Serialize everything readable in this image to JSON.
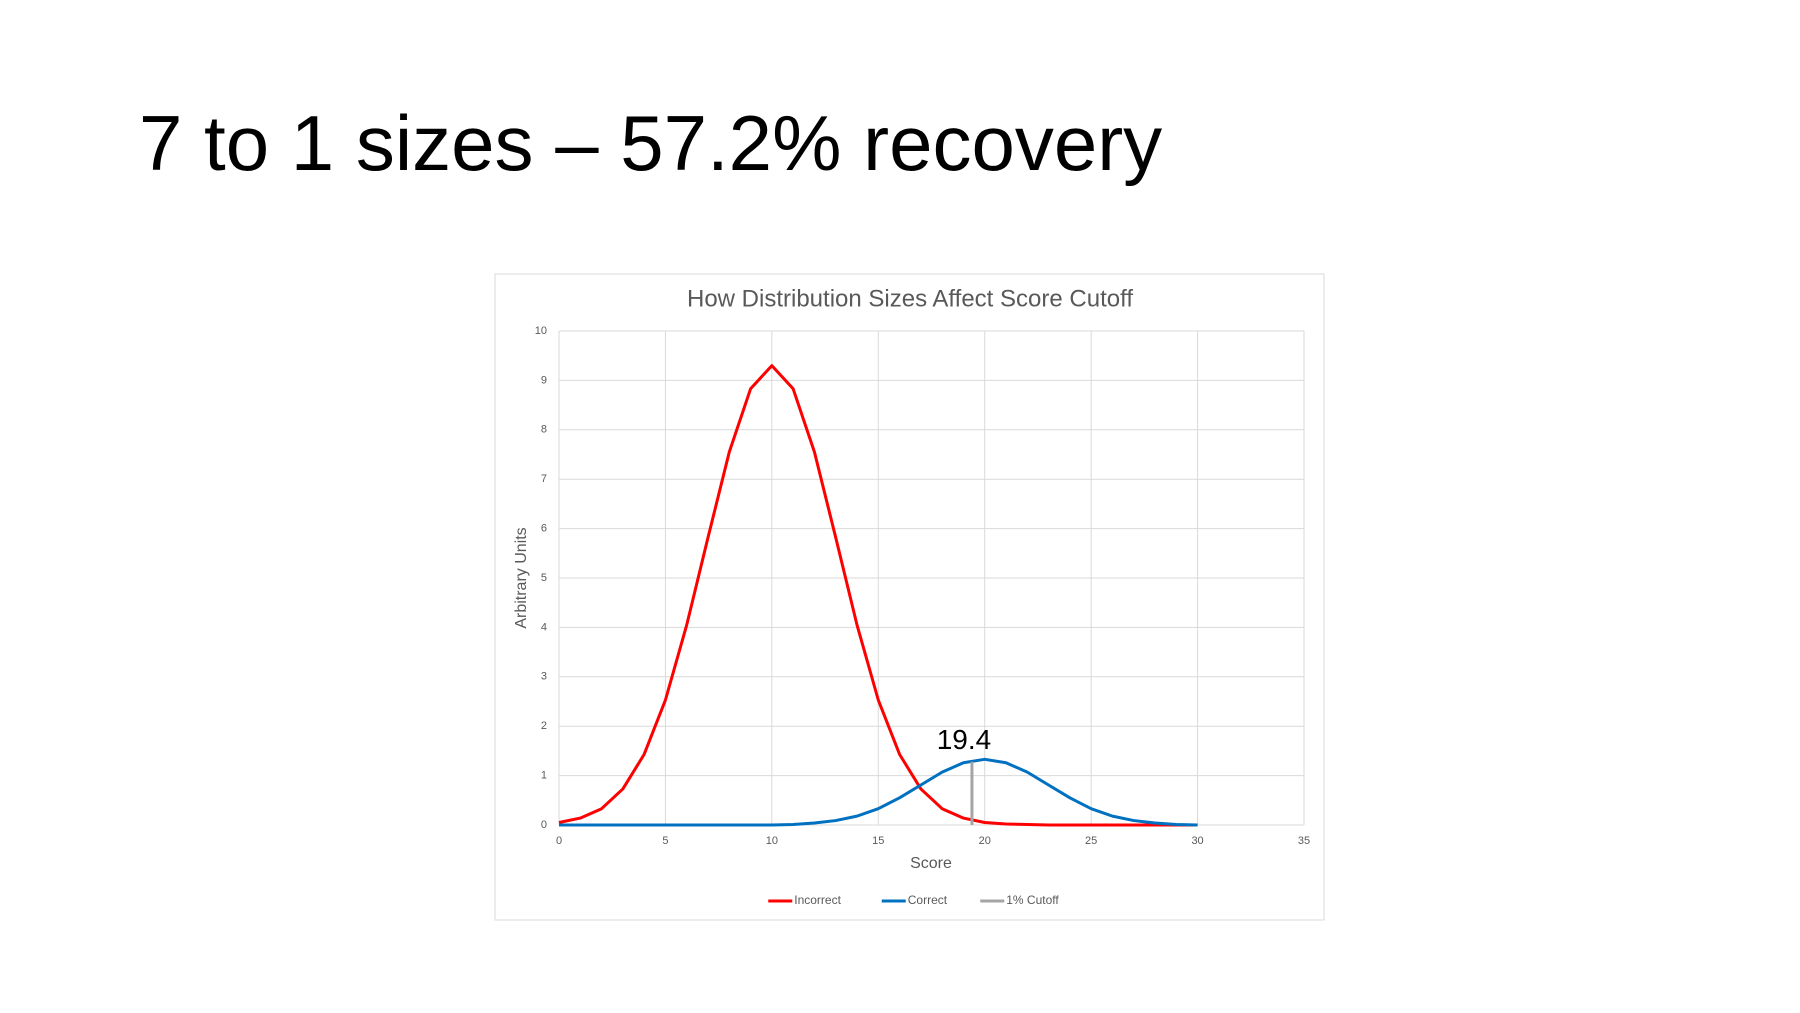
{
  "title": "7 to 1 sizes – 57.2% recovery",
  "chart_data": {
    "type": "line",
    "title": "How Distribution Sizes Affect Score Cutoff",
    "x_label": "Score",
    "y_label": "Arbitrary Units",
    "x": [
      0,
      1,
      2,
      3,
      4,
      5,
      6,
      7,
      8,
      9,
      10,
      11,
      12,
      13,
      14,
      15,
      16,
      17,
      18,
      19,
      20,
      21,
      22,
      23,
      24,
      25,
      26,
      27,
      28,
      29,
      30
    ],
    "series": [
      {
        "name": "Incorrect",
        "color": "#ff0000",
        "values": [
          0.05,
          0.14,
          0.33,
          0.73,
          1.43,
          2.53,
          4.05,
          5.82,
          7.55,
          8.83,
          9.3,
          8.83,
          7.55,
          5.82,
          4.05,
          2.53,
          1.43,
          0.73,
          0.33,
          0.14,
          0.05,
          0.02,
          0.01,
          0,
          0,
          0,
          0,
          0,
          0,
          0,
          0
        ]
      },
      {
        "name": "Correct",
        "color": "#0070c0",
        "values": [
          0,
          0,
          0,
          0,
          0,
          0,
          0,
          0,
          0,
          0,
          0,
          0.01,
          0.04,
          0.09,
          0.18,
          0.33,
          0.55,
          0.81,
          1.07,
          1.26,
          1.33,
          1.26,
          1.07,
          0.81,
          0.55,
          0.33,
          0.18,
          0.09,
          0.04,
          0.01,
          0
        ]
      },
      {
        "name": "1% Cutoff",
        "color": "#a5a5a5",
        "x": [
          19.4,
          19.4
        ],
        "values": [
          0,
          1.28
        ]
      }
    ],
    "xlim": [
      0,
      35
    ],
    "xticks": [
      0,
      5,
      10,
      15,
      20,
      25,
      30,
      35
    ],
    "ylim": [
      0,
      10
    ],
    "yticks": [
      0,
      1,
      2,
      3,
      4,
      5,
      6,
      7,
      8,
      9,
      10
    ],
    "grid": true,
    "legend": "bottom"
  }
}
